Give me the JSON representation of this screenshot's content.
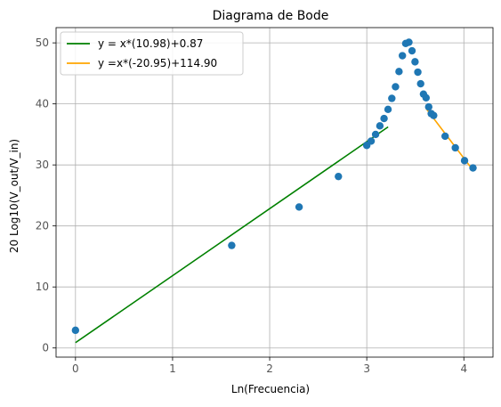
{
  "chart_data": {
    "type": "scatter",
    "title": "Diagrama de Bode",
    "xlabel": "Ln(Frecuencia)",
    "ylabel": "20 Log10(V_out/V_in)",
    "xlim": [
      -0.2,
      4.3
    ],
    "ylim": [
      -1.5,
      52.5
    ],
    "xticks": [
      0,
      1,
      2,
      3,
      4
    ],
    "yticks": [
      0,
      10,
      20,
      30,
      40,
      50
    ],
    "grid": true,
    "legend_position": "top-left",
    "colors": {
      "points": "#1f77b4",
      "fit1": "#008000",
      "fit2": "#ffa500",
      "grid": "#b0b0b0",
      "axis_text": "#555555"
    },
    "points": {
      "x": [
        0,
        1.609,
        2.303,
        2.708,
        3.0,
        3.045,
        3.091,
        3.135,
        3.178,
        3.219,
        3.258,
        3.296,
        3.332,
        3.367,
        3.401,
        3.434,
        3.466,
        3.497,
        3.526,
        3.555,
        3.584,
        3.611,
        3.638,
        3.664,
        3.689,
        3.807,
        3.912,
        4.007,
        4.094
      ],
      "y": [
        2.9,
        16.8,
        23.1,
        28.1,
        33.2,
        33.9,
        35.0,
        36.4,
        37.6,
        39.1,
        40.9,
        42.8,
        45.3,
        47.9,
        49.9,
        50.1,
        48.7,
        46.9,
        45.2,
        43.3,
        41.6,
        41.0,
        39.5,
        38.4,
        38.1,
        34.7,
        32.8,
        30.7,
        29.5
      ]
    },
    "series": [
      {
        "name": "y = x*(10.98)+0.87",
        "slope": 10.98,
        "intercept": 0.87,
        "x_range": [
          0,
          3.22
        ],
        "color": "#008000"
      },
      {
        "name": "y =x*(-20.95)+114.90",
        "slope": -20.95,
        "intercept": 114.9,
        "x_range": [
          3.61,
          4.09
        ],
        "color": "#ffa500"
      }
    ]
  }
}
